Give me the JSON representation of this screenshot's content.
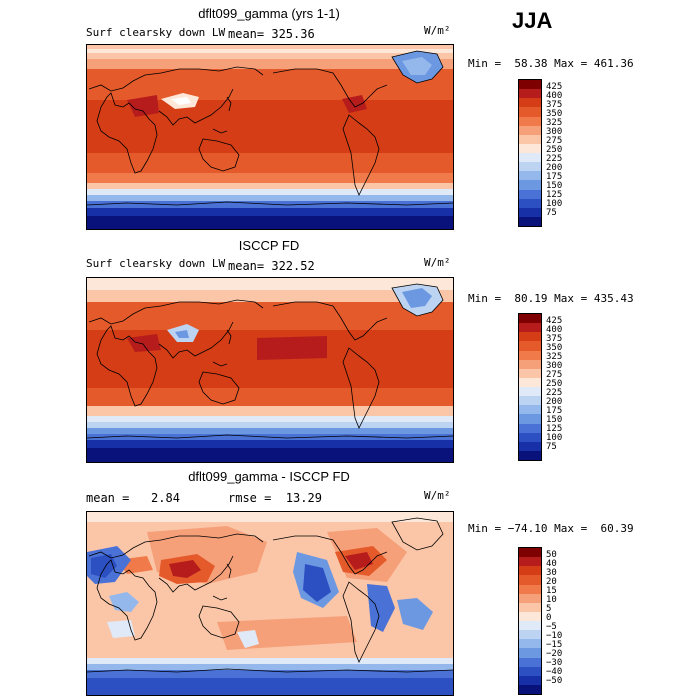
{
  "season": "JJA",
  "panels": [
    {
      "title": "dflt099_gamma (yrs 1-1)",
      "left_label": "Surf clearsky down LW",
      "mean_label": "mean= 325.36",
      "rmse_label": "",
      "units": "W/m²",
      "min_max": "Min =  58.38 Max = 461.36",
      "colorbar_labels": [
        "425",
        "400",
        "375",
        "350",
        "325",
        "300",
        "275",
        "250",
        "225",
        "200",
        "175",
        "150",
        "125",
        "100",
        "75"
      ],
      "colorbar_colors": [
        "#7f0000",
        "#b71c1c",
        "#d43d15",
        "#e55a2b",
        "#f07a4a",
        "#f6a07a",
        "#fbc6a8",
        "#fde7d8",
        "#dfe9f7",
        "#bcd4f2",
        "#94b8ec",
        "#6c98e2",
        "#4a72d6",
        "#2c4fc2",
        "#1730a8",
        "#08127a"
      ]
    },
    {
      "title": "ISCCP FD",
      "left_label": "Surf clearsky down LW",
      "mean_label": "mean= 322.52",
      "rmse_label": "",
      "units": "W/m²",
      "min_max": "Min =  80.19 Max = 435.43",
      "colorbar_labels": [
        "425",
        "400",
        "375",
        "350",
        "325",
        "300",
        "275",
        "250",
        "225",
        "200",
        "175",
        "150",
        "125",
        "100",
        "75"
      ],
      "colorbar_colors": [
        "#7f0000",
        "#b71c1c",
        "#d43d15",
        "#e55a2b",
        "#f07a4a",
        "#f6a07a",
        "#fbc6a8",
        "#fde7d8",
        "#dfe9f7",
        "#bcd4f2",
        "#94b8ec",
        "#6c98e2",
        "#4a72d6",
        "#2c4fc2",
        "#1730a8",
        "#08127a"
      ]
    },
    {
      "title": "dflt099_gamma - ISCCP FD",
      "left_label": "",
      "mean_label": "mean =   2.84",
      "rmse_label": "rmse =  13.29",
      "units": "W/m²",
      "min_max": "Min = −74.10 Max =  60.39",
      "colorbar_labels": [
        "50",
        "40",
        "30",
        "20",
        "15",
        "10",
        "5",
        "0",
        "−5",
        "−10",
        "−15",
        "−20",
        "−30",
        "−40",
        "−50"
      ],
      "colorbar_colors": [
        "#7f0000",
        "#b71c1c",
        "#d43d15",
        "#e55a2b",
        "#f07a4a",
        "#f6a07a",
        "#fbc6a8",
        "#fde7d8",
        "#dfe9f7",
        "#bcd4f2",
        "#94b8ec",
        "#6c98e2",
        "#4a72d6",
        "#2c4fc2",
        "#1730a8",
        "#08127a"
      ]
    }
  ]
}
